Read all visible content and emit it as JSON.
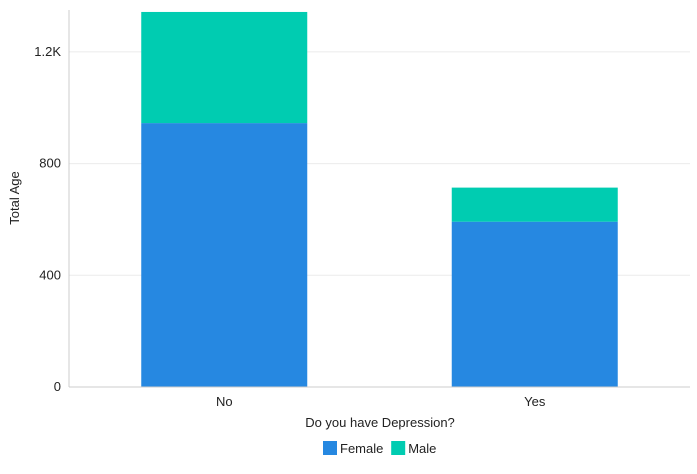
{
  "chart_data": {
    "type": "bar",
    "stacked": true,
    "categories": [
      "No",
      "Yes"
    ],
    "series": [
      {
        "name": "Female",
        "values": [
          945,
          592
        ],
        "color": "#2688e1"
      },
      {
        "name": "Male",
        "values": [
          398,
          122
        ],
        "color": "#00ccb1"
      }
    ],
    "xlabel": "Do you have Depression?",
    "ylabel": "Total Age",
    "ylim": [
      0,
      1350
    ],
    "yticks": [
      0,
      400,
      800,
      1200
    ],
    "ytick_labels": [
      "0",
      "400",
      "800",
      "1.2K"
    ],
    "grid": true,
    "legend_position": "bottom-center"
  }
}
